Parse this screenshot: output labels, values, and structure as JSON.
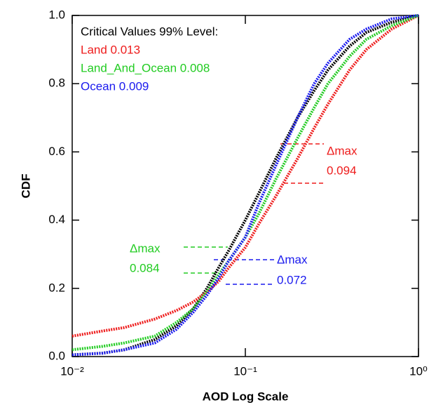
{
  "chart_data": {
    "type": "line",
    "x_scale": "log",
    "xlabel": "AOD Log Scale",
    "ylabel": "CDF",
    "x": [
      0.01,
      0.015,
      0.02,
      0.03,
      0.04,
      0.05,
      0.06,
      0.07,
      0.08,
      0.1,
      0.12,
      0.15,
      0.2,
      0.25,
      0.3,
      0.4,
      0.5,
      0.7,
      1.0
    ],
    "series": [
      {
        "color": "#000000",
        "values": [
          0.005,
          0.01,
          0.02,
          0.05,
          0.09,
          0.14,
          0.2,
          0.26,
          0.31,
          0.4,
          0.48,
          0.58,
          0.7,
          0.78,
          0.84,
          0.91,
          0.95,
          0.98,
          1.0
        ]
      },
      {
        "name": "Land 0.013",
        "color": "#ee1c1c",
        "values": [
          0.06,
          0.075,
          0.085,
          0.11,
          0.135,
          0.16,
          0.19,
          0.22,
          0.26,
          0.32,
          0.39,
          0.47,
          0.58,
          0.67,
          0.74,
          0.84,
          0.9,
          0.96,
          1.0
        ]
      },
      {
        "name": "Land_And_Ocean 0.008",
        "color": "#22cc22",
        "values": [
          0.02,
          0.03,
          0.04,
          0.06,
          0.1,
          0.14,
          0.19,
          0.24,
          0.28,
          0.35,
          0.42,
          0.52,
          0.64,
          0.73,
          0.8,
          0.88,
          0.93,
          0.97,
          1.0
        ]
      },
      {
        "name": "Ocean 0.009",
        "color": "#1a1aee",
        "values": [
          0.005,
          0.01,
          0.02,
          0.04,
          0.08,
          0.13,
          0.18,
          0.23,
          0.28,
          0.35,
          0.45,
          0.56,
          0.7,
          0.8,
          0.86,
          0.93,
          0.96,
          0.99,
          1.0
        ]
      }
    ],
    "legend_title": "Critical Values 99% Level:",
    "legend": "upper left",
    "annotations": [
      {
        "text": "Δmax",
        "color": "#ee1c1c"
      },
      {
        "text": "0.094",
        "color": "#ee1c1c"
      },
      {
        "text": "Δmax",
        "color": "#22cc22"
      },
      {
        "text": "0.084",
        "color": "#22cc22"
      },
      {
        "text": "Δmax",
        "color": "#1a1aee"
      },
      {
        "text": "0.072",
        "color": "#1a1aee"
      }
    ],
    "xlim": [
      0.01,
      1.0
    ],
    "xticks": [
      {
        "value": 0.01,
        "label": "10⁻²"
      },
      {
        "value": 0.1,
        "label": "10⁻¹"
      },
      {
        "value": 1.0,
        "label": "10⁰"
      }
    ],
    "ylim": [
      0,
      1.0
    ],
    "yticks": [
      {
        "value": 0,
        "label": "0.0"
      },
      0.2,
      0.4,
      0.6,
      0.8,
      {
        "value": 1.0,
        "label": "1.0"
      }
    ],
    "grid": false
  }
}
